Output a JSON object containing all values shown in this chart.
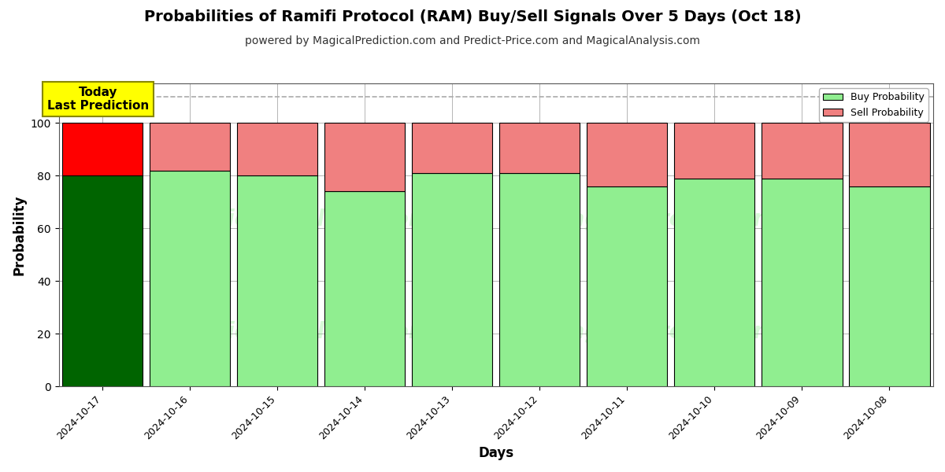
{
  "title": "Probabilities of Ramifi Protocol (RAM) Buy/Sell Signals Over 5 Days (Oct 18)",
  "subtitle": "powered by MagicalPrediction.com and Predict-Price.com and MagicalAnalysis.com",
  "xlabel": "Days",
  "ylabel": "Probability",
  "legend_buy": "Buy Probability",
  "legend_sell": "Sell Probability",
  "annotation_text": "Today\nLast Prediction",
  "dates": [
    "2024-10-17",
    "2024-10-16",
    "2024-10-15",
    "2024-10-14",
    "2024-10-13",
    "2024-10-12",
    "2024-10-11",
    "2024-10-10",
    "2024-10-09",
    "2024-10-08"
  ],
  "buy_values": [
    80,
    82,
    80,
    74,
    81,
    81,
    76,
    79,
    79,
    76
  ],
  "sell_values": [
    20,
    18,
    20,
    26,
    19,
    19,
    24,
    21,
    21,
    24
  ],
  "today_buy_color": "#006400",
  "today_sell_color": "#FF0000",
  "buy_color": "#90EE90",
  "sell_color": "#F08080",
  "bar_edge_color": "#000000",
  "annotation_bg": "#FFFF00",
  "annotation_edge": "#888800",
  "grid_color": "#aaaaaa",
  "dashed_line_y": 110,
  "ylim": [
    0,
    115
  ],
  "yticks": [
    0,
    20,
    40,
    60,
    80,
    100
  ],
  "watermark_left": "MagicalAnalysis.com",
  "watermark_right": "MagicalPrediction.com",
  "fig_width": 12,
  "fig_height": 6,
  "bar_width": 0.92
}
